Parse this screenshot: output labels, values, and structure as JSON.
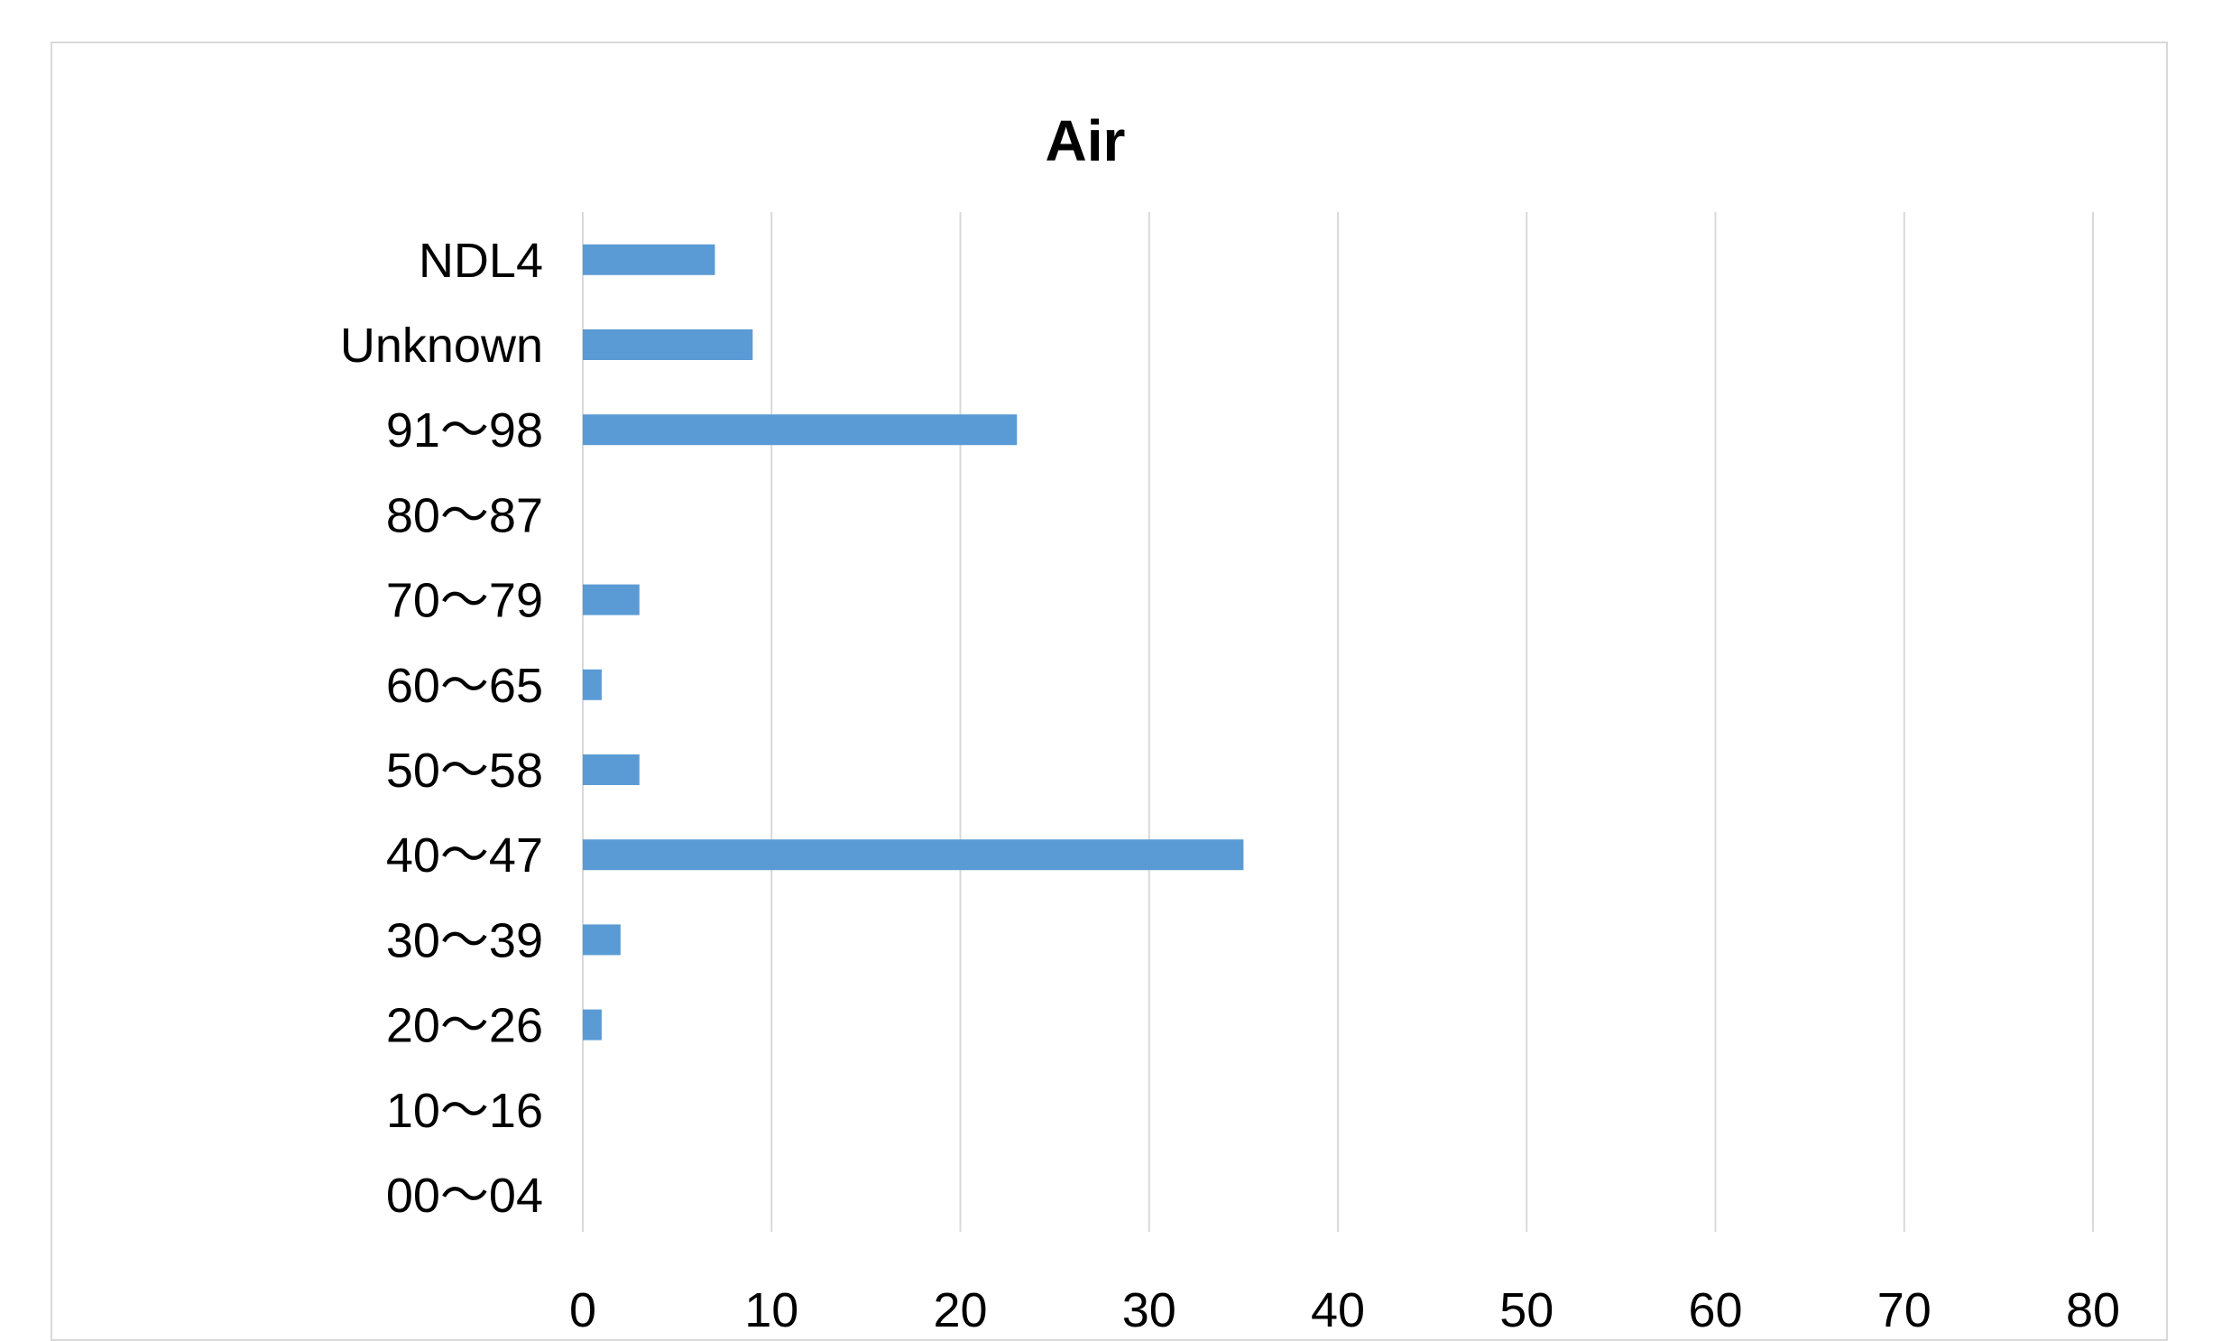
{
  "chart_data": {
    "type": "bar",
    "orientation": "horizontal",
    "title": "Air",
    "xlabel": "",
    "ylabel": "",
    "categories": [
      "00～04",
      "10～16",
      "20～26",
      "30～39",
      "40～47",
      "50～58",
      "60～65",
      "70～79",
      "80～87",
      "91～98",
      "Unknown",
      "NDL4"
    ],
    "values": [
      0,
      0,
      1,
      2,
      35,
      3,
      1,
      3,
      0,
      23,
      9,
      7
    ],
    "xlim": [
      0,
      80
    ],
    "xticks": [
      "0",
      "10",
      "20",
      "30",
      "40",
      "50",
      "60",
      "70",
      "80"
    ],
    "grid": "vertical",
    "legend": "none",
    "bar_color": "#5b9bd5"
  }
}
